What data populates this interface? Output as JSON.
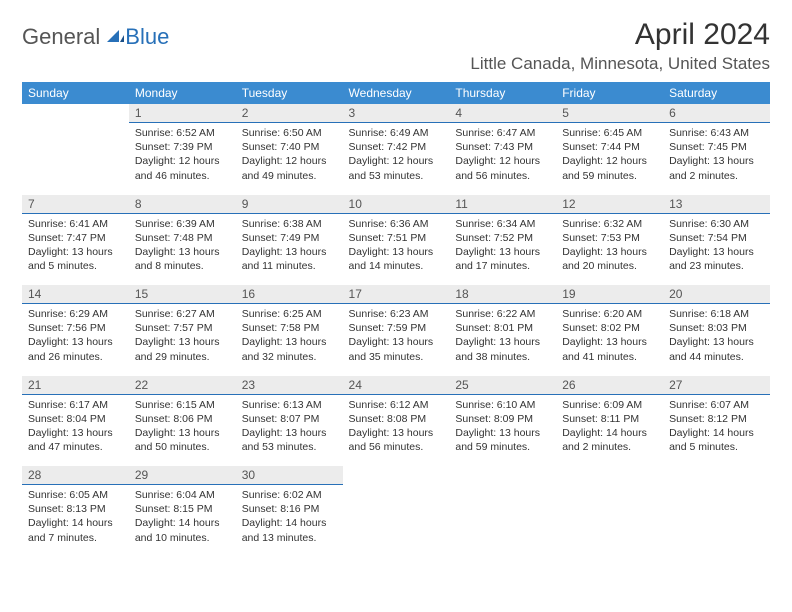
{
  "logo": {
    "part1": "General",
    "part2": "Blue"
  },
  "title": "April 2024",
  "location": "Little Canada, Minnesota, United States",
  "colors": {
    "header_bg": "#3b8bd0",
    "header_fg": "#ffffff",
    "daynum_bg": "#ececec",
    "accent_border": "#2770b8",
    "text": "#333333"
  },
  "weekday_labels": [
    "Sunday",
    "Monday",
    "Tuesday",
    "Wednesday",
    "Thursday",
    "Friday",
    "Saturday"
  ],
  "weeks": [
    [
      null,
      {
        "n": "1",
        "sr": "6:52 AM",
        "ss": "7:39 PM",
        "dl": "12 hours and 46 minutes."
      },
      {
        "n": "2",
        "sr": "6:50 AM",
        "ss": "7:40 PM",
        "dl": "12 hours and 49 minutes."
      },
      {
        "n": "3",
        "sr": "6:49 AM",
        "ss": "7:42 PM",
        "dl": "12 hours and 53 minutes."
      },
      {
        "n": "4",
        "sr": "6:47 AM",
        "ss": "7:43 PM",
        "dl": "12 hours and 56 minutes."
      },
      {
        "n": "5",
        "sr": "6:45 AM",
        "ss": "7:44 PM",
        "dl": "12 hours and 59 minutes."
      },
      {
        "n": "6",
        "sr": "6:43 AM",
        "ss": "7:45 PM",
        "dl": "13 hours and 2 minutes."
      }
    ],
    [
      {
        "n": "7",
        "sr": "6:41 AM",
        "ss": "7:47 PM",
        "dl": "13 hours and 5 minutes."
      },
      {
        "n": "8",
        "sr": "6:39 AM",
        "ss": "7:48 PM",
        "dl": "13 hours and 8 minutes."
      },
      {
        "n": "9",
        "sr": "6:38 AM",
        "ss": "7:49 PM",
        "dl": "13 hours and 11 minutes."
      },
      {
        "n": "10",
        "sr": "6:36 AM",
        "ss": "7:51 PM",
        "dl": "13 hours and 14 minutes."
      },
      {
        "n": "11",
        "sr": "6:34 AM",
        "ss": "7:52 PM",
        "dl": "13 hours and 17 minutes."
      },
      {
        "n": "12",
        "sr": "6:32 AM",
        "ss": "7:53 PM",
        "dl": "13 hours and 20 minutes."
      },
      {
        "n": "13",
        "sr": "6:30 AM",
        "ss": "7:54 PM",
        "dl": "13 hours and 23 minutes."
      }
    ],
    [
      {
        "n": "14",
        "sr": "6:29 AM",
        "ss": "7:56 PM",
        "dl": "13 hours and 26 minutes."
      },
      {
        "n": "15",
        "sr": "6:27 AM",
        "ss": "7:57 PM",
        "dl": "13 hours and 29 minutes."
      },
      {
        "n": "16",
        "sr": "6:25 AM",
        "ss": "7:58 PM",
        "dl": "13 hours and 32 minutes."
      },
      {
        "n": "17",
        "sr": "6:23 AM",
        "ss": "7:59 PM",
        "dl": "13 hours and 35 minutes."
      },
      {
        "n": "18",
        "sr": "6:22 AM",
        "ss": "8:01 PM",
        "dl": "13 hours and 38 minutes."
      },
      {
        "n": "19",
        "sr": "6:20 AM",
        "ss": "8:02 PM",
        "dl": "13 hours and 41 minutes."
      },
      {
        "n": "20",
        "sr": "6:18 AM",
        "ss": "8:03 PM",
        "dl": "13 hours and 44 minutes."
      }
    ],
    [
      {
        "n": "21",
        "sr": "6:17 AM",
        "ss": "8:04 PM",
        "dl": "13 hours and 47 minutes."
      },
      {
        "n": "22",
        "sr": "6:15 AM",
        "ss": "8:06 PM",
        "dl": "13 hours and 50 minutes."
      },
      {
        "n": "23",
        "sr": "6:13 AM",
        "ss": "8:07 PM",
        "dl": "13 hours and 53 minutes."
      },
      {
        "n": "24",
        "sr": "6:12 AM",
        "ss": "8:08 PM",
        "dl": "13 hours and 56 minutes."
      },
      {
        "n": "25",
        "sr": "6:10 AM",
        "ss": "8:09 PM",
        "dl": "13 hours and 59 minutes."
      },
      {
        "n": "26",
        "sr": "6:09 AM",
        "ss": "8:11 PM",
        "dl": "14 hours and 2 minutes."
      },
      {
        "n": "27",
        "sr": "6:07 AM",
        "ss": "8:12 PM",
        "dl": "14 hours and 5 minutes."
      }
    ],
    [
      {
        "n": "28",
        "sr": "6:05 AM",
        "ss": "8:13 PM",
        "dl": "14 hours and 7 minutes."
      },
      {
        "n": "29",
        "sr": "6:04 AM",
        "ss": "8:15 PM",
        "dl": "14 hours and 10 minutes."
      },
      {
        "n": "30",
        "sr": "6:02 AM",
        "ss": "8:16 PM",
        "dl": "14 hours and 13 minutes."
      },
      null,
      null,
      null,
      null
    ]
  ],
  "labels": {
    "sunrise": "Sunrise:",
    "sunset": "Sunset:",
    "daylight": "Daylight:"
  }
}
